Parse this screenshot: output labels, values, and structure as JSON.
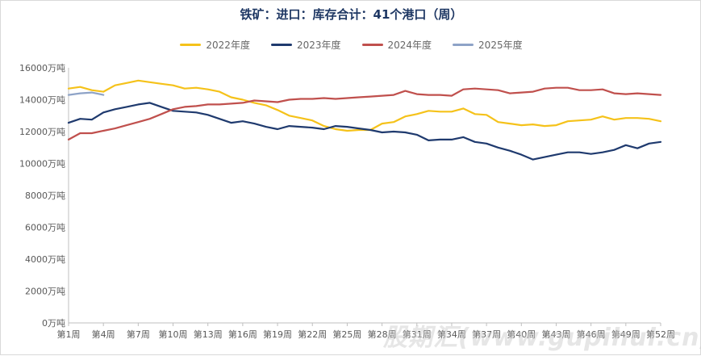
{
  "chart_data": {
    "type": "line",
    "title": "铁矿：进口：库存合计：41个港口（周）",
    "ylim": [
      0,
      16000
    ],
    "yticks": [
      0,
      2000,
      4000,
      6000,
      8000,
      10000,
      12000,
      14000,
      16000
    ],
    "ytick_labels": [
      "0万吨",
      "2000万吨",
      "4000万吨",
      "6000万吨",
      "8000万吨",
      "10000万吨",
      "12000万吨",
      "14000万吨",
      "16000万吨"
    ],
    "xtick_labels": [
      "第1周",
      "第4周",
      "第7周",
      "第10周",
      "第13周",
      "第16周",
      "第19周",
      "第22周",
      "第25周",
      "第28周",
      "第31周",
      "第34周",
      "第37周",
      "第40周",
      "第43周",
      "第46周",
      "第49周",
      "第52周"
    ],
    "xtick_weeks": [
      1,
      4,
      7,
      10,
      13,
      16,
      19,
      22,
      25,
      28,
      31,
      34,
      37,
      40,
      43,
      46,
      49,
      52
    ],
    "grid": false,
    "legend_position": "top",
    "series": [
      {
        "name": "2022年度",
        "color": "#f5c21a",
        "values": [
          14700,
          14800,
          14600,
          14500,
          14900,
          15050,
          15200,
          15100,
          15000,
          14900,
          14700,
          14750,
          14650,
          14500,
          14150,
          14000,
          13800,
          13650,
          13350,
          13000,
          12850,
          12700,
          12350,
          12150,
          12050,
          12100,
          12100,
          12500,
          12600,
          12950,
          13100,
          13300,
          13250,
          13250,
          13450,
          13100,
          13050,
          12600,
          12500,
          12400,
          12450,
          12350,
          12400,
          12650,
          12700,
          12750,
          12950,
          12750,
          12850,
          12850,
          12800,
          12650
        ]
      },
      {
        "name": "2023年度",
        "color": "#1f3a6e",
        "values": [
          12550,
          12800,
          12750,
          13200,
          13400,
          13550,
          13700,
          13800,
          13550,
          13300,
          13250,
          13200,
          13050,
          12800,
          12550,
          12650,
          12500,
          12300,
          12150,
          12350,
          12300,
          12250,
          12150,
          12350,
          12300,
          12200,
          12100,
          11950,
          12000,
          11950,
          11800,
          11450,
          11500,
          11500,
          11650,
          11350,
          11250,
          11000,
          10800,
          10550,
          10250,
          10400,
          10550,
          10700,
          10700,
          10600,
          10700,
          10850,
          11150,
          10950,
          11250,
          11350
        ]
      },
      {
        "name": "2024年度",
        "color": "#c0504d",
        "values": [
          11500,
          11900,
          11900,
          12050,
          12200,
          12400,
          12600,
          12800,
          13100,
          13400,
          13550,
          13600,
          13700,
          13700,
          13750,
          13800,
          13950,
          13900,
          13850,
          14000,
          14050,
          14050,
          14100,
          14050,
          14100,
          14150,
          14200,
          14250,
          14300,
          14550,
          14350,
          14300,
          14300,
          14250,
          14650,
          14700,
          14650,
          14600,
          14400,
          14450,
          14500,
          14700,
          14750,
          14750,
          14600,
          14600,
          14650,
          14400,
          14350,
          14400,
          14350,
          14300
        ]
      },
      {
        "name": "2025年度",
        "color": "#8ea3c7",
        "values": [
          14300,
          14400,
          14450,
          14300
        ]
      }
    ]
  }
}
